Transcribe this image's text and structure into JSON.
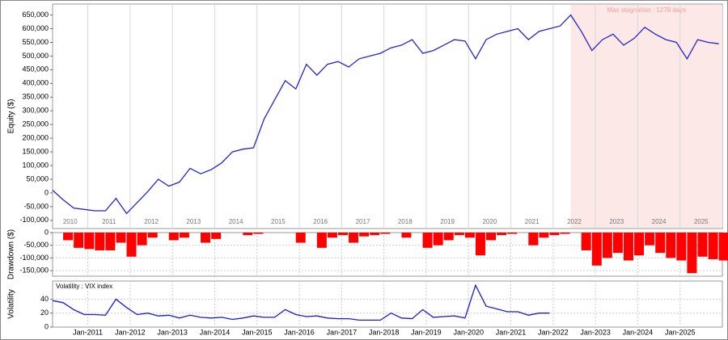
{
  "chart_data": [
    {
      "type": "line",
      "ylabel": "Equity ($)",
      "color": "#2424d0",
      "annotation": {
        "text": "Max stagnation : 1278 days",
        "start": "2022-06",
        "end": "2025-12"
      },
      "x": [
        "2010-03",
        "2010-06",
        "2010-09",
        "2010-12",
        "2011-03",
        "2011-06",
        "2011-09",
        "2011-12",
        "2012-03",
        "2012-06",
        "2012-09",
        "2012-12",
        "2013-03",
        "2013-06",
        "2013-09",
        "2013-12",
        "2014-03",
        "2014-06",
        "2014-09",
        "2014-12",
        "2015-03",
        "2015-06",
        "2015-09",
        "2015-12",
        "2016-03",
        "2016-06",
        "2016-09",
        "2016-12",
        "2017-03",
        "2017-06",
        "2017-09",
        "2017-12",
        "2018-03",
        "2018-06",
        "2018-09",
        "2018-12",
        "2019-03",
        "2019-06",
        "2019-09",
        "2019-12",
        "2020-03",
        "2020-06",
        "2020-09",
        "2020-12",
        "2021-03",
        "2021-06",
        "2021-09",
        "2021-12",
        "2022-03",
        "2022-06",
        "2022-09",
        "2022-12",
        "2023-03",
        "2023-06",
        "2023-09",
        "2023-12",
        "2024-03",
        "2024-06",
        "2024-09",
        "2024-12",
        "2025-03",
        "2025-06",
        "2025-09",
        "2025-12"
      ],
      "values": [
        10000,
        -25000,
        -55000,
        -60000,
        -65000,
        -65000,
        -20000,
        -75000,
        -35000,
        5000,
        50000,
        25000,
        40000,
        90000,
        70000,
        85000,
        110000,
        150000,
        160000,
        165000,
        270000,
        340000,
        410000,
        380000,
        470000,
        430000,
        470000,
        480000,
        460000,
        490000,
        500000,
        510000,
        530000,
        540000,
        560000,
        510000,
        520000,
        540000,
        560000,
        555000,
        490000,
        560000,
        580000,
        590000,
        600000,
        560000,
        590000,
        600000,
        610000,
        650000,
        590000,
        520000,
        560000,
        580000,
        540000,
        565000,
        605000,
        580000,
        560000,
        550000,
        490000,
        560000,
        550000,
        545000
      ],
      "xlim": [
        "2010-03",
        "2025-12"
      ],
      "xticks": [
        2010,
        2011,
        2012,
        2013,
        2014,
        2015,
        2016,
        2017,
        2018,
        2019,
        2020,
        2021,
        2022,
        2023,
        2024,
        2025
      ],
      "ylim": [
        -130000,
        690000
      ],
      "yticks": [
        {
          "value": -100000,
          "label": "-100,000"
        },
        {
          "value": -50000,
          "label": "-50,000"
        },
        0,
        {
          "value": 50000,
          "label": "50,000"
        },
        {
          "value": 100000,
          "label": "100,000"
        },
        {
          "value": 150000,
          "label": "150,000"
        },
        {
          "value": 200000,
          "label": "200,000"
        },
        {
          "value": 250000,
          "label": "250,000"
        },
        {
          "value": 300000,
          "label": "300,000"
        },
        {
          "value": 350000,
          "label": "350,000"
        },
        {
          "value": 400000,
          "label": "400,000"
        },
        {
          "value": 450000,
          "label": "450,000"
        },
        {
          "value": 500000,
          "label": "500,000"
        },
        {
          "value": 550000,
          "label": "550,000"
        },
        {
          "value": 600000,
          "label": "600,000"
        },
        {
          "value": 650000,
          "label": "650,000"
        }
      ],
      "grid": true
    },
    {
      "type": "bar",
      "ylabel": "Drawdown ($)",
      "color": "#ff0000",
      "x": [
        "2010-03",
        "2010-06",
        "2010-09",
        "2010-12",
        "2011-03",
        "2011-06",
        "2011-09",
        "2011-12",
        "2012-03",
        "2012-06",
        "2012-09",
        "2012-12",
        "2013-03",
        "2013-06",
        "2013-09",
        "2013-12",
        "2014-03",
        "2014-06",
        "2014-09",
        "2014-12",
        "2015-03",
        "2015-06",
        "2015-09",
        "2015-12",
        "2016-03",
        "2016-06",
        "2016-09",
        "2016-12",
        "2017-03",
        "2017-06",
        "2017-09",
        "2017-12",
        "2018-03",
        "2018-06",
        "2018-09",
        "2018-12",
        "2019-03",
        "2019-06",
        "2019-09",
        "2019-12",
        "2020-03",
        "2020-06",
        "2020-09",
        "2020-12",
        "2021-03",
        "2021-06",
        "2021-09",
        "2021-12",
        "2022-03",
        "2022-06",
        "2022-09",
        "2022-12",
        "2023-03",
        "2023-06",
        "2023-09",
        "2023-12",
        "2024-03",
        "2024-06",
        "2024-09",
        "2024-12",
        "2025-03",
        "2025-06",
        "2025-09",
        "2025-12"
      ],
      "values": [
        0,
        -30000,
        -60000,
        -65000,
        -70000,
        -70000,
        -40000,
        -95000,
        -50000,
        -20000,
        0,
        -30000,
        -20000,
        0,
        -40000,
        -25000,
        0,
        0,
        -10000,
        -5000,
        0,
        0,
        0,
        -40000,
        0,
        -60000,
        -20000,
        -10000,
        -40000,
        -15000,
        -10000,
        -5000,
        0,
        -20000,
        0,
        -60000,
        -50000,
        -30000,
        -10000,
        -20000,
        -90000,
        -30000,
        -10000,
        -5000,
        0,
        -50000,
        -20000,
        -10000,
        -5000,
        0,
        -70000,
        -130000,
        -100000,
        -80000,
        -110000,
        -90000,
        -50000,
        -80000,
        -100000,
        -110000,
        -160000,
        -95000,
        -105000,
        -110000
      ],
      "xlim": [
        "2010-03",
        "2025-12"
      ],
      "ylim": [
        -172000,
        0
      ],
      "yticks": [
        {
          "value": -150000,
          "label": "-150,000"
        },
        {
          "value": -100000,
          "label": "-100,000"
        },
        {
          "value": -50000,
          "label": "-50,000"
        },
        0
      ],
      "grid": true
    },
    {
      "type": "line",
      "ylabel": "Volatility",
      "x": [
        "2010-03",
        "2010-06",
        "2010-09",
        "2010-12",
        "2011-03",
        "2011-06",
        "2011-09",
        "2011-12",
        "2012-03",
        "2012-06",
        "2012-09",
        "2012-12",
        "2013-03",
        "2013-06",
        "2013-09",
        "2013-12",
        "2014-03",
        "2014-06",
        "2014-09",
        "2014-12",
        "2015-03",
        "2015-06",
        "2015-09",
        "2015-12",
        "2016-03",
        "2016-06",
        "2016-09",
        "2016-12",
        "2017-03",
        "2017-06",
        "2017-09",
        "2017-12",
        "2018-03",
        "2018-06",
        "2018-09",
        "2018-12",
        "2019-03",
        "2019-06",
        "2019-09",
        "2019-12",
        "2020-03",
        "2020-06",
        "2020-09",
        "2020-12",
        "2021-03",
        "2021-06",
        "2021-09",
        "2021-12"
      ],
      "series": [
        {
          "name": "Volatility : VIX index",
          "color": "#1a1adb",
          "values": [
            38,
            35,
            25,
            18,
            18,
            17,
            40,
            28,
            18,
            20,
            16,
            17,
            13,
            17,
            14,
            13,
            14,
            11,
            13,
            16,
            14,
            14,
            25,
            18,
            15,
            16,
            13,
            12,
            12,
            10,
            10,
            10,
            20,
            13,
            12,
            25,
            14,
            15,
            16,
            13,
            60,
            30,
            26,
            22,
            22,
            17,
            20,
            20
          ]
        }
      ],
      "xlim": [
        "2010-03",
        "2025-12"
      ],
      "xticks": [
        {
          "value": "2011-01",
          "label": "Jan-2011"
        },
        {
          "value": "2012-01",
          "label": "Jan-2012"
        },
        {
          "value": "2013-01",
          "label": "Jan-2013"
        },
        {
          "value": "2014-01",
          "label": "Jan-2014"
        },
        {
          "value": "2015-01",
          "label": "Jan-2015"
        },
        {
          "value": "2016-01",
          "label": "Jan-2016"
        },
        {
          "value": "2017-01",
          "label": "Jan-2017"
        },
        {
          "value": "2018-01",
          "label": "Jan-2018"
        },
        {
          "value": "2019-01",
          "label": "Jan-2019"
        },
        {
          "value": "2020-01",
          "label": "Jan-2020"
        },
        {
          "value": "2021-01",
          "label": "Jan-2021"
        },
        {
          "value": "2022-01",
          "label": "Jan-2022"
        },
        {
          "value": "2023-01",
          "label": "Jan-2023"
        },
        {
          "value": "2024-01",
          "label": "Jan-2024"
        },
        {
          "value": "2025-01",
          "label": "Jan-2025"
        }
      ],
      "ylim": [
        0,
        66
      ],
      "yticks": [
        0,
        20,
        40
      ],
      "grid": true
    }
  ]
}
